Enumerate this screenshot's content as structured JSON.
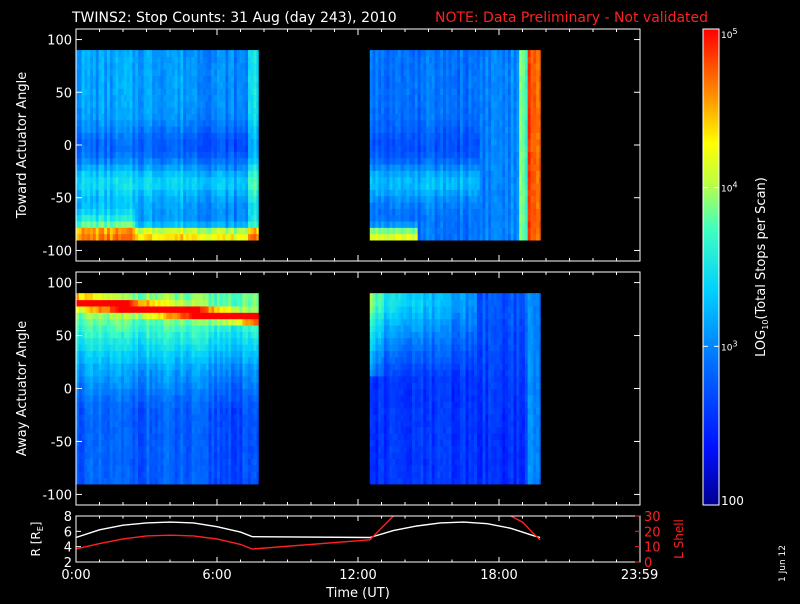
{
  "header": {
    "title": "TWINS2: Stop Counts: 31 Aug (day 243), 2010",
    "note": "NOTE: Data Preliminary - Not validated",
    "note_color": "#ff2020"
  },
  "footer": {
    "date_stamp": "1 Jun 12"
  },
  "chart_data": [
    {
      "type": "heatmap",
      "title": "",
      "xlabel": "",
      "ylabel": "Toward Actuator Angle",
      "xlim": [
        0,
        24
      ],
      "ylim": [
        -110,
        110
      ],
      "yticks": [
        -100,
        -50,
        0,
        50,
        100
      ],
      "ytick_labels": [
        "-100",
        "-50",
        "0",
        "50",
        "100"
      ],
      "x_segments": [
        [
          0,
          7.75
        ],
        [
          12.5,
          19.75
        ]
      ],
      "angle_range": [
        -90,
        90
      ]
    },
    {
      "type": "heatmap",
      "title": "",
      "xlabel": "",
      "ylabel": "Away Actuator Angle",
      "xlim": [
        0,
        24
      ],
      "ylim": [
        -110,
        110
      ],
      "yticks": [
        -100,
        -50,
        0,
        50,
        100
      ],
      "ytick_labels": [
        "-100",
        "-50",
        "0",
        "50",
        "100"
      ],
      "x_segments": [
        [
          0,
          7.75
        ],
        [
          12.5,
          19.75
        ]
      ],
      "angle_range": [
        -90,
        90
      ]
    },
    {
      "type": "line",
      "xlabel": "Time (UT)",
      "xlim": [
        0,
        24
      ],
      "xticks": [
        0,
        6,
        12,
        18,
        23.983
      ],
      "xtick_labels": [
        "0:00",
        "6:00",
        "12:00",
        "18:00",
        "23:59"
      ],
      "left_axis": {
        "label": "R [R",
        "label_sub": "E",
        "label_end": "]",
        "ylim": [
          2,
          8
        ],
        "ticks": [
          2,
          4,
          6,
          8
        ],
        "tick_labels": [
          "2",
          "4",
          "6",
          "8"
        ],
        "color": "#ffffff"
      },
      "right_axis": {
        "label": "L Shell",
        "ylim": [
          0,
          30
        ],
        "ticks": [
          0,
          10,
          20,
          30
        ],
        "tick_labels": [
          "0",
          "10",
          "20",
          "30"
        ],
        "color": "#ff2020"
      },
      "series": [
        {
          "axis": "left",
          "color": "#ffffff",
          "x": [
            0,
            1,
            2,
            3,
            4,
            5,
            6,
            7,
            7.5,
            12.5,
            13.5,
            14.5,
            15.5,
            16.5,
            17.5,
            18.5,
            19.5,
            19.75
          ],
          "y": [
            5.2,
            6.2,
            6.8,
            7.1,
            7.2,
            7.1,
            6.6,
            5.9,
            5.3,
            5.2,
            6.1,
            6.7,
            7.1,
            7.2,
            7.0,
            6.4,
            5.4,
            5.2
          ]
        },
        {
          "axis": "right",
          "color": "#ff2020",
          "x": [
            0,
            1,
            2,
            3,
            4,
            5,
            6,
            7,
            7.5,
            12.5,
            13.25,
            13.5
          ],
          "y": [
            8.5,
            12,
            15,
            17,
            17.5,
            17,
            15,
            11.5,
            8.5,
            14.5,
            26,
            30
          ],
          "x2": [
            18.5,
            19,
            19.5,
            19.75
          ],
          "y2": [
            30,
            26,
            18,
            14.5
          ]
        }
      ]
    }
  ],
  "colorbar": {
    "label": "LOG10(Total Stops per Scan)",
    "label_main": "LOG",
    "label_sub": "10",
    "label_rest": "(Total Stops per Scan)",
    "min": 100,
    "max": 100000,
    "tick_labels": [
      {
        "value": 100,
        "base": "100",
        "exp": ""
      },
      {
        "value": 1000,
        "base": "10",
        "exp": "3"
      },
      {
        "value": 10000,
        "base": "10",
        "exp": "4"
      },
      {
        "value": 100000,
        "base": "10",
        "exp": "5"
      }
    ]
  }
}
